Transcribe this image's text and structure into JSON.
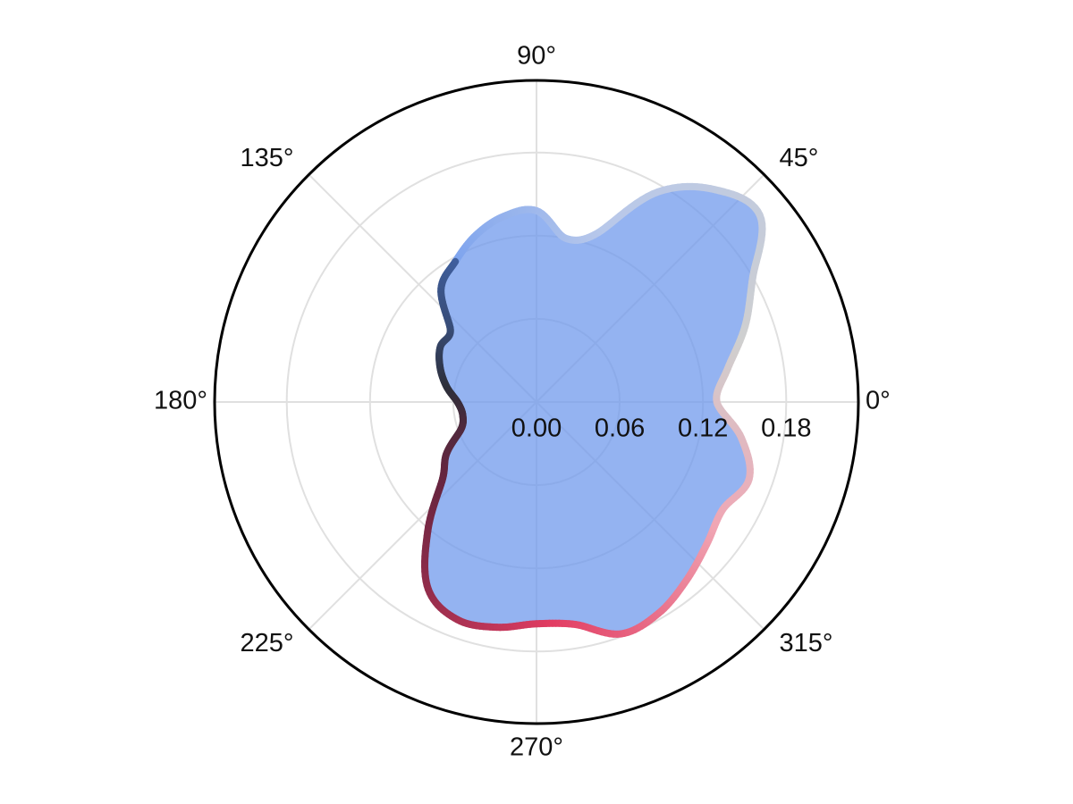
{
  "chart_data": {
    "type": "polar-area",
    "title": "",
    "series": [
      {
        "name": "",
        "fill_color": "#6f98ec",
        "fill_opacity": 0.74,
        "line_gradient": [
          "#3f5f9e",
          "#2d2f3a",
          "#6a2540",
          "#e23c62",
          "#f0a6b4",
          "#cfcfcf",
          "#b8c8ea",
          "#7ea4ee"
        ],
        "theta_deg": [
          0,
          10,
          20,
          30,
          40,
          50,
          60,
          70,
          80,
          90,
          100,
          110,
          120,
          130,
          140,
          150,
          160,
          170,
          180,
          190,
          200,
          210,
          220,
          230,
          240,
          250,
          260,
          270,
          280,
          290,
          300,
          310,
          320,
          330,
          340,
          350
        ],
        "r": [
          0.13,
          0.14,
          0.16,
          0.18,
          0.21,
          0.2,
          0.175,
          0.13,
          0.12,
          0.138,
          0.136,
          0.128,
          0.117,
          0.107,
          0.081,
          0.08,
          0.074,
          0.066,
          0.057,
          0.054,
          0.058,
          0.075,
          0.089,
          0.122,
          0.156,
          0.167,
          0.165,
          0.16,
          0.163,
          0.178,
          0.176,
          0.168,
          0.16,
          0.155,
          0.163,
          0.15
        ]
      }
    ],
    "theta_tick_labels": [
      "0°",
      "45°",
      "90°",
      "135°",
      "180°",
      "225°",
      "270°",
      "315°"
    ],
    "theta_ticks_deg": [
      0,
      45,
      90,
      135,
      180,
      225,
      270,
      315
    ],
    "r_tick_labels": [
      "0.00",
      "0.06",
      "0.12",
      "0.18"
    ],
    "r_ticks": [
      0,
      0.06,
      0.12,
      0.18
    ],
    "r_max": 0.232,
    "grid": true,
    "grid_color": "#e0e0e0",
    "outer_ring_color": "#000000"
  }
}
